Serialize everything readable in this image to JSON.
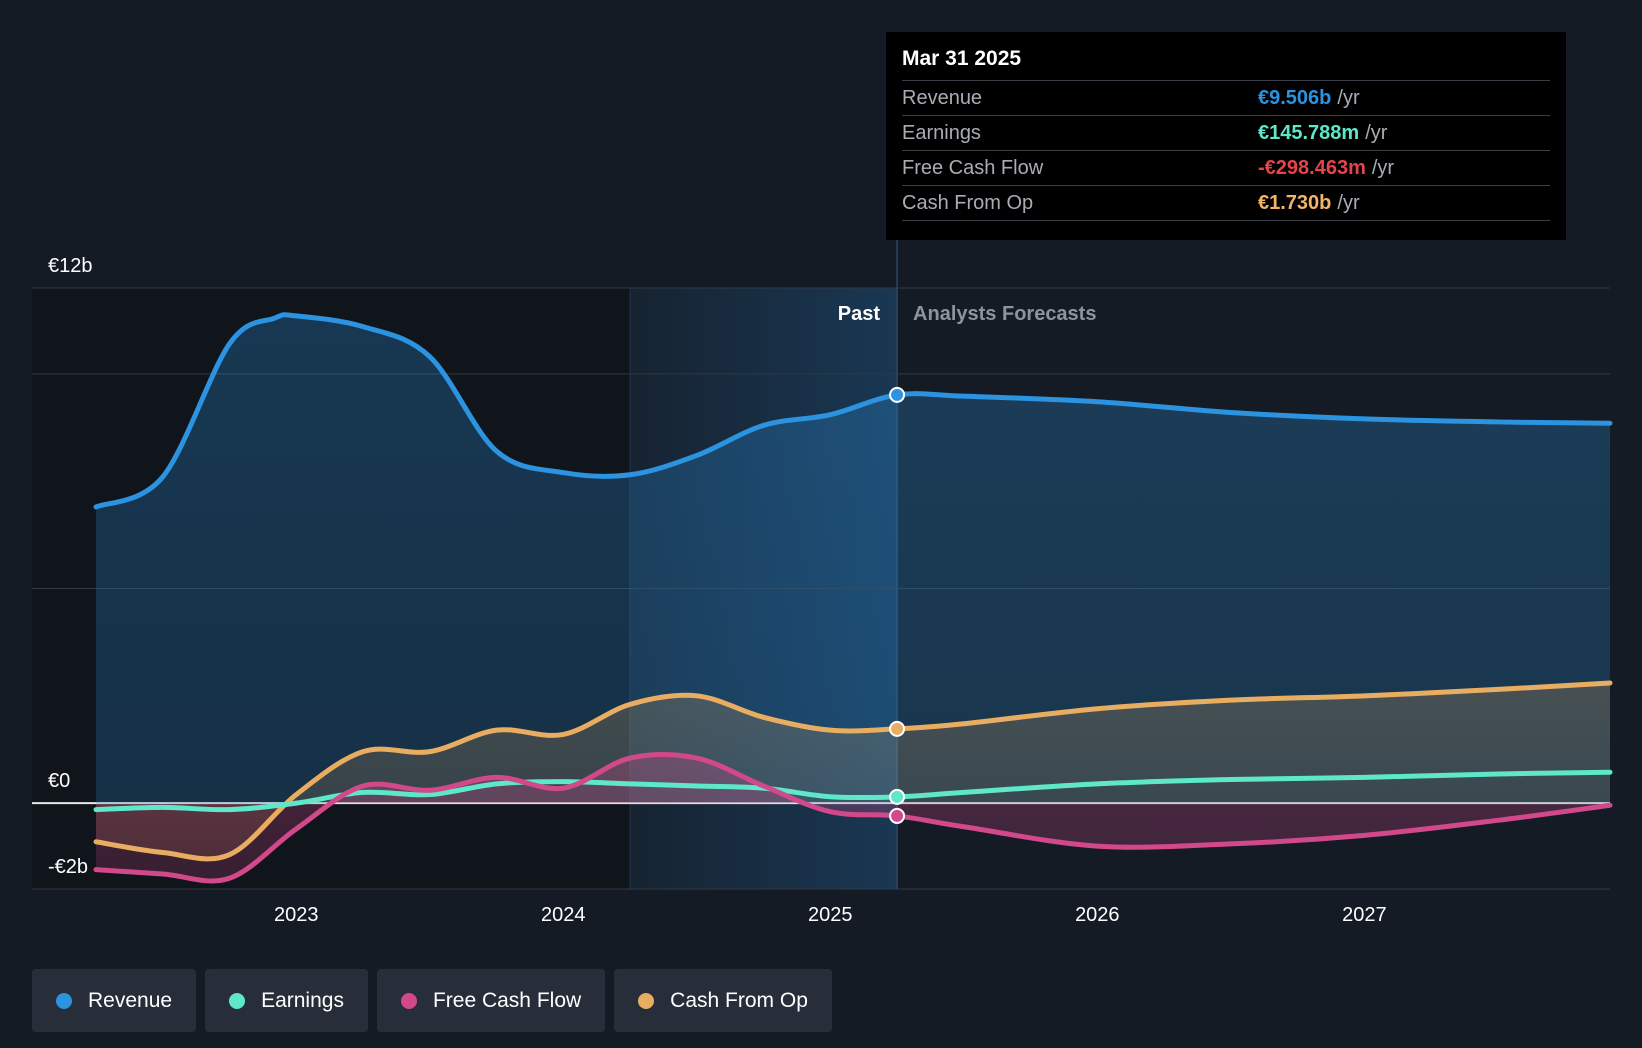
{
  "tooltip": {
    "date": "Mar 31 2025",
    "rows": [
      {
        "label": "Revenue",
        "value": "€9.506b",
        "unit": "/yr",
        "color": "#2b93e0"
      },
      {
        "label": "Earnings",
        "value": "€145.788m",
        "unit": "/yr",
        "color": "#5ee7c9"
      },
      {
        "label": "Free Cash Flow",
        "value": "-€298.463m",
        "unit": "/yr",
        "color": "#e8424a"
      },
      {
        "label": "Cash From Op",
        "value": "€1.730b",
        "unit": "/yr",
        "color": "#f2b566"
      }
    ]
  },
  "legend": [
    {
      "label": "Revenue",
      "color": "#2b93e0"
    },
    {
      "label": "Earnings",
      "color": "#5ee7c9"
    },
    {
      "label": "Free Cash Flow",
      "color": "#d1498a"
    },
    {
      "label": "Cash From Op",
      "color": "#e8ad60"
    }
  ],
  "chart_data": {
    "type": "area",
    "y_tick_labels": {
      "top": "€12b",
      "zero": "€0",
      "bottom": "-€2b"
    },
    "ylim": [
      -2,
      12
    ],
    "xlim": [
      2022.25,
      2027.92
    ],
    "x_ticks": [
      2023,
      2024,
      2025,
      2026,
      2027
    ],
    "x_tick_labels": [
      "2023",
      "2024",
      "2025",
      "2026",
      "2027"
    ],
    "gridlines_y": [
      -2,
      0,
      5,
      10,
      12
    ],
    "past_label": "Past",
    "forecast_label": "Analysts Forecasts",
    "forecast_start": 2025.25,
    "highlight_start": 2024.25,
    "series": [
      {
        "name": "Revenue",
        "color": "#2b93e0",
        "fill": true,
        "points": [
          [
            2022.25,
            6.9
          ],
          [
            2022.5,
            7.6
          ],
          [
            2022.75,
            10.7
          ],
          [
            2022.92,
            11.3
          ],
          [
            2023.0,
            11.35
          ],
          [
            2023.25,
            11.1
          ],
          [
            2023.5,
            10.4
          ],
          [
            2023.75,
            8.2
          ],
          [
            2024.0,
            7.7
          ],
          [
            2024.25,
            7.65
          ],
          [
            2024.5,
            8.1
          ],
          [
            2024.75,
            8.8
          ],
          [
            2025.0,
            9.05
          ],
          [
            2025.25,
            9.51
          ],
          [
            2025.5,
            9.48
          ],
          [
            2026.0,
            9.35
          ],
          [
            2026.5,
            9.1
          ],
          [
            2027.0,
            8.95
          ],
          [
            2027.5,
            8.88
          ],
          [
            2027.92,
            8.85
          ]
        ]
      },
      {
        "name": "Cash From Op",
        "color": "#e8ad60",
        "fill": true,
        "points": [
          [
            2022.25,
            -0.9
          ],
          [
            2022.5,
            -1.15
          ],
          [
            2022.75,
            -1.2
          ],
          [
            2023.0,
            0.2
          ],
          [
            2023.25,
            1.2
          ],
          [
            2023.5,
            1.2
          ],
          [
            2023.75,
            1.7
          ],
          [
            2024.0,
            1.6
          ],
          [
            2024.25,
            2.3
          ],
          [
            2024.5,
            2.5
          ],
          [
            2024.75,
            2.0
          ],
          [
            2025.0,
            1.7
          ],
          [
            2025.25,
            1.73
          ],
          [
            2025.5,
            1.85
          ],
          [
            2026.0,
            2.2
          ],
          [
            2026.5,
            2.4
          ],
          [
            2027.0,
            2.5
          ],
          [
            2027.5,
            2.65
          ],
          [
            2027.92,
            2.8
          ]
        ]
      },
      {
        "name": "Earnings",
        "color": "#5ee7c9",
        "fill": false,
        "points": [
          [
            2022.25,
            -0.15
          ],
          [
            2022.5,
            -0.1
          ],
          [
            2022.75,
            -0.15
          ],
          [
            2023.0,
            0.0
          ],
          [
            2023.25,
            0.25
          ],
          [
            2023.5,
            0.2
          ],
          [
            2023.75,
            0.45
          ],
          [
            2024.0,
            0.5
          ],
          [
            2024.25,
            0.45
          ],
          [
            2024.5,
            0.4
          ],
          [
            2024.75,
            0.35
          ],
          [
            2025.0,
            0.15
          ],
          [
            2025.25,
            0.146
          ],
          [
            2025.5,
            0.25
          ],
          [
            2026.0,
            0.45
          ],
          [
            2026.5,
            0.55
          ],
          [
            2027.0,
            0.6
          ],
          [
            2027.5,
            0.68
          ],
          [
            2027.92,
            0.72
          ]
        ]
      },
      {
        "name": "Free Cash Flow",
        "color": "#d1498a",
        "fill": true,
        "points": [
          [
            2022.25,
            -1.55
          ],
          [
            2022.5,
            -1.65
          ],
          [
            2022.75,
            -1.75
          ],
          [
            2023.0,
            -0.6
          ],
          [
            2023.25,
            0.4
          ],
          [
            2023.5,
            0.3
          ],
          [
            2023.75,
            0.6
          ],
          [
            2024.0,
            0.35
          ],
          [
            2024.25,
            1.05
          ],
          [
            2024.5,
            1.05
          ],
          [
            2024.75,
            0.4
          ],
          [
            2025.0,
            -0.2
          ],
          [
            2025.25,
            -0.298
          ],
          [
            2025.5,
            -0.55
          ],
          [
            2026.0,
            -1.0
          ],
          [
            2026.5,
            -0.95
          ],
          [
            2027.0,
            -0.75
          ],
          [
            2027.5,
            -0.4
          ],
          [
            2027.92,
            -0.05
          ]
        ]
      }
    ]
  }
}
